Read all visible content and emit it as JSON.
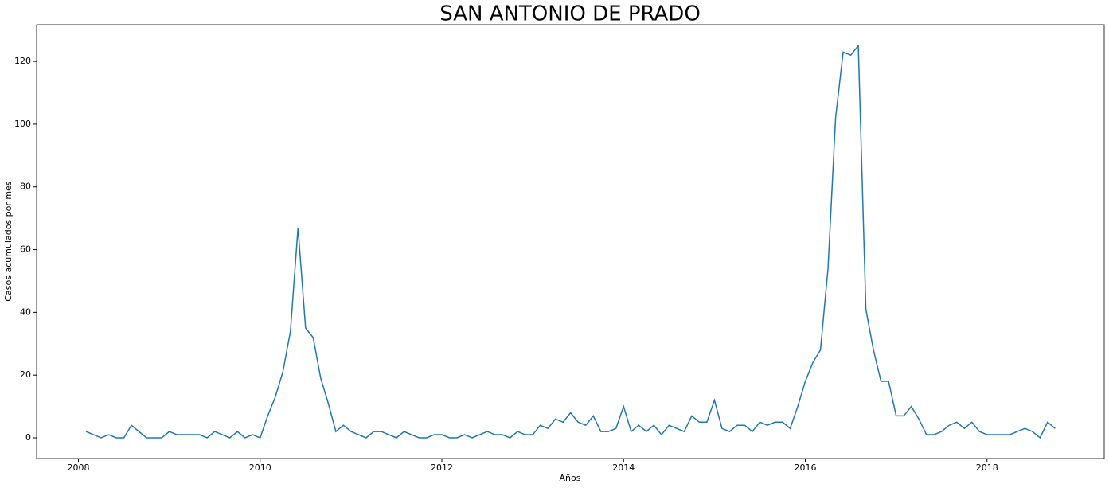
{
  "chart_data": {
    "type": "line",
    "title": "SAN ANTONIO DE PRADO",
    "x_label": "Años",
    "y_label": "Casos acumulados por mes",
    "color": "#1f77b4",
    "x": [
      "2008-02",
      "2008-03",
      "2008-04",
      "2008-05",
      "2008-06",
      "2008-07",
      "2008-08",
      "2008-09",
      "2008-10",
      "2008-11",
      "2008-12",
      "2009-01",
      "2009-02",
      "2009-03",
      "2009-04",
      "2009-05",
      "2009-06",
      "2009-07",
      "2009-08",
      "2009-09",
      "2009-10",
      "2009-11",
      "2009-12",
      "2010-01",
      "2010-02",
      "2010-03",
      "2010-04",
      "2010-05",
      "2010-06",
      "2010-07",
      "2010-08",
      "2010-09",
      "2010-10",
      "2010-11",
      "2010-12",
      "2011-01",
      "2011-02",
      "2011-03",
      "2011-04",
      "2011-05",
      "2011-06",
      "2011-07",
      "2011-08",
      "2011-09",
      "2011-10",
      "2011-11",
      "2011-12",
      "2012-01",
      "2012-02",
      "2012-03",
      "2012-04",
      "2012-05",
      "2012-06",
      "2012-07",
      "2012-08",
      "2012-09",
      "2012-10",
      "2012-11",
      "2012-12",
      "2013-01",
      "2013-02",
      "2013-03",
      "2013-04",
      "2013-05",
      "2013-06",
      "2013-07",
      "2013-08",
      "2013-09",
      "2013-10",
      "2013-11",
      "2013-12",
      "2014-01",
      "2014-02",
      "2014-03",
      "2014-04",
      "2014-05",
      "2014-06",
      "2014-07",
      "2014-08",
      "2014-09",
      "2014-10",
      "2014-11",
      "2014-12",
      "2015-01",
      "2015-02",
      "2015-03",
      "2015-04",
      "2015-05",
      "2015-06",
      "2015-07",
      "2015-08",
      "2015-09",
      "2015-10",
      "2015-11",
      "2015-12",
      "2016-01",
      "2016-02",
      "2016-03",
      "2016-04",
      "2016-05",
      "2016-06",
      "2016-07",
      "2016-08",
      "2016-09",
      "2016-10",
      "2016-11",
      "2016-12",
      "2017-01",
      "2017-02",
      "2017-03",
      "2017-04",
      "2017-05",
      "2017-06",
      "2017-07",
      "2017-08",
      "2017-09",
      "2017-10",
      "2017-11",
      "2017-12",
      "2018-01",
      "2018-02",
      "2018-03",
      "2018-04",
      "2018-05",
      "2018-06",
      "2018-07",
      "2018-08",
      "2018-09",
      "2018-10"
    ],
    "values": [
      2,
      1,
      0,
      1,
      0,
      0,
      4,
      2,
      0,
      0,
      0,
      2,
      1,
      1,
      1,
      1,
      0,
      2,
      1,
      0,
      2,
      0,
      1,
      0,
      7,
      13,
      21,
      34,
      67,
      35,
      32,
      19,
      11,
      2,
      4,
      2,
      1,
      0,
      2,
      2,
      1,
      0,
      2,
      1,
      0,
      0,
      1,
      1,
      0,
      0,
      1,
      0,
      1,
      2,
      1,
      1,
      0,
      2,
      1,
      1,
      4,
      3,
      6,
      5,
      8,
      5,
      4,
      7,
      2,
      2,
      3,
      10,
      2,
      4,
      2,
      4,
      1,
      4,
      3,
      2,
      7,
      5,
      5,
      12,
      3,
      2,
      4,
      4,
      2,
      5,
      4,
      5,
      5,
      3,
      10,
      18,
      24,
      28,
      54,
      102,
      123,
      122,
      125,
      41,
      28,
      18,
      18,
      7,
      7,
      10,
      6,
      1,
      1,
      2,
      4,
      5,
      3,
      5,
      2,
      1,
      1,
      1,
      1,
      2,
      3,
      2,
      0,
      5,
      3
    ],
    "xlim": [
      2007.54,
      2019.29
    ],
    "xticks": [
      2008,
      2010,
      2012,
      2014,
      2016,
      2018
    ],
    "ylim": [
      -6.6,
      131.7
    ],
    "yticks": [
      0,
      20,
      40,
      60,
      80,
      100,
      120
    ]
  }
}
